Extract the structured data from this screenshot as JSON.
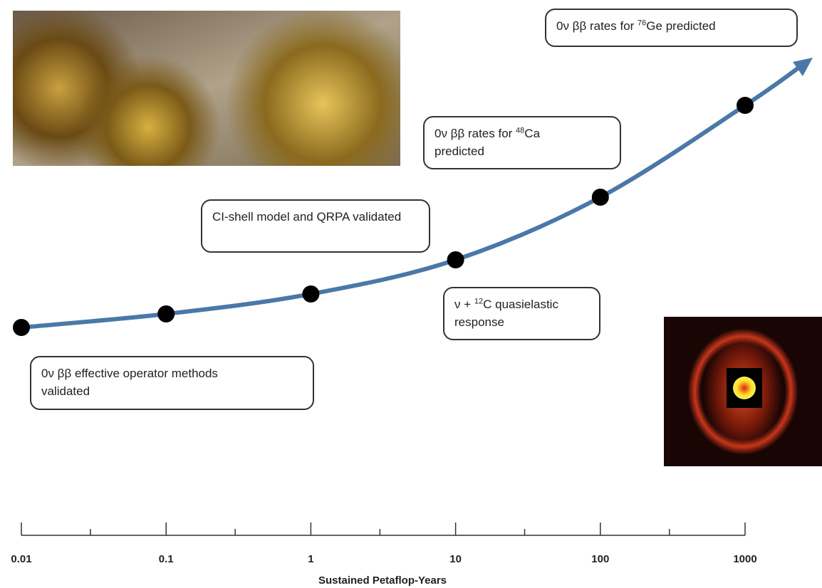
{
  "chart_data": {
    "type": "line",
    "x": [
      0.01,
      0.1,
      1,
      10,
      100,
      1000
    ],
    "xlim": [
      0.01,
      1000
    ],
    "xticks": [
      0.01,
      0.1,
      1,
      10,
      100,
      1000
    ],
    "xticks_minor": [
      0.03,
      0.3,
      3,
      30,
      300
    ],
    "log_x": true,
    "color": "#4a78a8",
    "xlabel": "Sustained Petaflop-Years",
    "annotations": [
      {
        "parts": [
          "0ν ββ effective operator methods validated"
        ]
      },
      {
        "parts": [
          "CI-shell model and QRPA validated"
        ]
      },
      {
        "parts": [
          "ν + ",
          "12",
          "C quasielastic response"
        ]
      },
      {
        "parts": [
          "0ν ββ rates for ",
          "48",
          "Ca predicted"
        ]
      },
      {
        "parts": [
          "0ν ββ rates for ",
          "76",
          "Ge predicted"
        ]
      }
    ]
  }
}
